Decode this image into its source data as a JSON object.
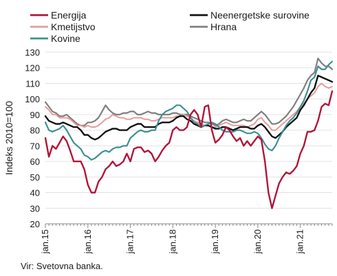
{
  "source_note": "Vir: Svetovna banka.",
  "chart_data": {
    "type": "line",
    "title": "",
    "xlabel": "",
    "ylabel": "Indeks 2010=100",
    "ylim": [
      20,
      130
    ],
    "yticks": [
      20,
      30,
      40,
      50,
      60,
      70,
      80,
      90,
      100,
      110,
      120,
      130
    ],
    "x_start": "2015-01",
    "x_end": "2021-10",
    "xticks": [
      {
        "label": "jan.15",
        "month": 0
      },
      {
        "label": "jan.16",
        "month": 12
      },
      {
        "label": "jan.17",
        "month": 24
      },
      {
        "label": "jan.18",
        "month": 36
      },
      {
        "label": "jan.19",
        "month": 48
      },
      {
        "label": "jan.20",
        "month": 60
      },
      {
        "label": "jan.21",
        "month": 72
      }
    ],
    "grid": true,
    "legend_position": "top",
    "series": [
      {
        "name": "Energija",
        "color": "#b0153a",
        "width": 2.4,
        "values": [
          75,
          63,
          70,
          68,
          72,
          76,
          73,
          67,
          60,
          60,
          60,
          55,
          45,
          40,
          40,
          47,
          50,
          55,
          57,
          60,
          57,
          58,
          60,
          65,
          60,
          68,
          69,
          69,
          66,
          67,
          65,
          60,
          63,
          67,
          70,
          72,
          80,
          82,
          80,
          80,
          82,
          90,
          93,
          90,
          82,
          95,
          96,
          80,
          72,
          74,
          77,
          82,
          80,
          76,
          73,
          75,
          70,
          73,
          70,
          73,
          76,
          74,
          60,
          40,
          30,
          38,
          46,
          50,
          53,
          52,
          54,
          57,
          65,
          70,
          79,
          79,
          80,
          86,
          95,
          97,
          96,
          105
        ]
      },
      {
        "name": "Neenergetske surovine",
        "color": "#111111",
        "width": 2.4,
        "values": [
          89,
          86,
          85,
          84,
          84,
          85,
          84,
          83,
          82,
          82,
          80,
          77,
          77,
          75,
          74,
          75,
          77,
          79,
          80,
          81,
          81,
          80,
          80,
          80,
          82,
          83,
          84,
          84,
          82,
          82,
          82,
          82,
          84,
          85,
          85,
          85,
          86,
          88,
          89,
          89,
          87,
          86,
          84,
          83,
          82,
          83,
          83,
          82,
          81,
          81,
          82,
          82,
          81,
          80,
          81,
          82,
          82,
          82,
          81,
          81,
          83,
          84,
          82,
          79,
          76,
          75,
          77,
          79,
          82,
          84,
          86,
          88,
          93,
          96,
          100,
          104,
          107,
          115,
          114,
          113,
          112,
          111
        ]
      },
      {
        "name": "Kmetijstvo",
        "color": "#e59b9b",
        "width": 2.0,
        "values": [
          95,
          93,
          90,
          90,
          88,
          88,
          88,
          87,
          85,
          83,
          83,
          82,
          83,
          82,
          82,
          83,
          85,
          87,
          88,
          90,
          89,
          88,
          88,
          87,
          87,
          88,
          88,
          88,
          87,
          87,
          86,
          86,
          87,
          88,
          88,
          88,
          88,
          89,
          89,
          90,
          89,
          88,
          86,
          85,
          84,
          83,
          83,
          82,
          82,
          83,
          84,
          85,
          84,
          83,
          83,
          83,
          83,
          82,
          83,
          84,
          87,
          88,
          85,
          83,
          80,
          80,
          82,
          84,
          86,
          88,
          90,
          92,
          95,
          97,
          100,
          102,
          104,
          108,
          110,
          108,
          107,
          108
        ]
      },
      {
        "name": "Hrana",
        "color": "#7f7f7f",
        "width": 2.2,
        "values": [
          98,
          95,
          92,
          91,
          89,
          89,
          90,
          88,
          86,
          84,
          83,
          83,
          85,
          85,
          86,
          88,
          92,
          96,
          93,
          91,
          90,
          90,
          91,
          91,
          92,
          92,
          90,
          90,
          91,
          92,
          91,
          91,
          90,
          90,
          90,
          90,
          91,
          91,
          90,
          90,
          90,
          89,
          88,
          87,
          86,
          85,
          85,
          84,
          83,
          84,
          86,
          87,
          86,
          85,
          85,
          86,
          87,
          86,
          86,
          88,
          90,
          92,
          90,
          87,
          84,
          84,
          85,
          87,
          89,
          92,
          95,
          99,
          103,
          107,
          112,
          115,
          117,
          126,
          123,
          121,
          121,
          119
        ]
      },
      {
        "name": "Kovine",
        "color": "#3f8f93",
        "width": 2.2,
        "values": [
          85,
          80,
          79,
          80,
          81,
          83,
          80,
          76,
          72,
          70,
          68,
          64,
          63,
          61,
          62,
          64,
          66,
          67,
          66,
          68,
          69,
          69,
          70,
          70,
          75,
          77,
          79,
          80,
          79,
          79,
          80,
          80,
          86,
          90,
          92,
          93,
          94,
          96,
          96,
          94,
          92,
          88,
          85,
          84,
          82,
          83,
          84,
          85,
          84,
          82,
          80,
          79,
          79,
          79,
          80,
          80,
          79,
          78,
          78,
          79,
          78,
          75,
          71,
          68,
          67,
          70,
          75,
          79,
          83,
          86,
          88,
          91,
          95,
          99,
          105,
          112,
          114,
          121,
          119,
          119,
          122,
          124
        ]
      }
    ]
  }
}
